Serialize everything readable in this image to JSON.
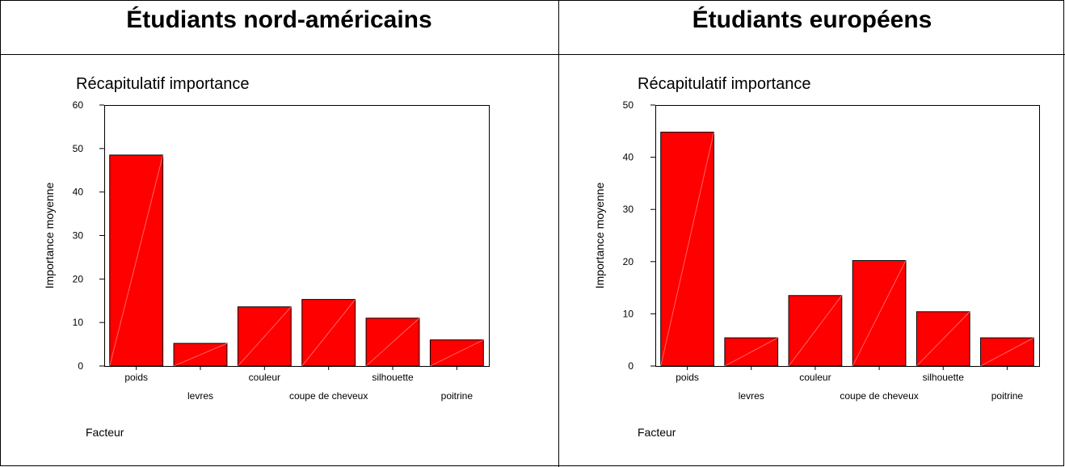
{
  "panels": [
    {
      "heading": "Étudiants nord-américains"
    },
    {
      "heading": "Étudiants européens"
    }
  ],
  "chart_data": [
    {
      "type": "bar",
      "title": "Récapitulatif importance",
      "xlabel": "Facteur",
      "ylabel": "Importance moyenne",
      "categories": [
        "poids",
        "levres",
        "couleur",
        "coupe de cheveux",
        "silhouette",
        "poitrine"
      ],
      "values": [
        48.5,
        5.2,
        13.6,
        15.3,
        11.0,
        6.0
      ],
      "ylim": [
        0,
        60
      ],
      "yticks": [
        0,
        10,
        20,
        30,
        40,
        50,
        60
      ],
      "bar_color": "#ff0000",
      "grid": false
    },
    {
      "type": "bar",
      "title": "Récapitulatif importance",
      "xlabel": "Facteur",
      "ylabel": "Importance moyenne",
      "categories": [
        "poids",
        "levres",
        "couleur",
        "coupe de cheveux",
        "silhouette",
        "poitrine"
      ],
      "values": [
        44.8,
        5.4,
        13.5,
        20.2,
        10.4,
        5.4
      ],
      "ylim": [
        0,
        50
      ],
      "yticks": [
        0,
        10,
        20,
        30,
        40,
        50
      ],
      "bar_color": "#ff0000",
      "grid": false
    }
  ]
}
